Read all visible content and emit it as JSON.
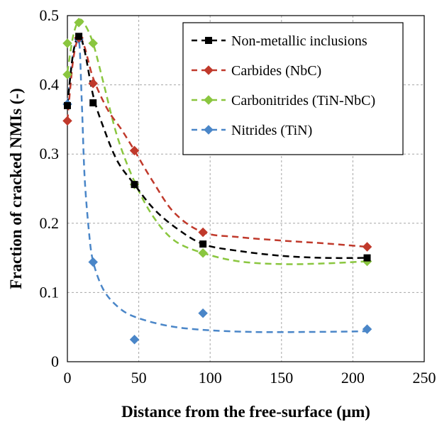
{
  "chart_data": {
    "type": "scatter",
    "xlabel": "Distance from the free-surface (µm)",
    "ylabel": "Fraction of cracked NMIs (-)",
    "xlim": [
      0,
      250
    ],
    "ylim": [
      0,
      0.5
    ],
    "xticks": [
      0,
      50,
      100,
      150,
      200,
      250
    ],
    "yticks": [
      0,
      0.1,
      0.2,
      0.3,
      0.4,
      0.5
    ],
    "x_tick_labels": [
      "0",
      "50",
      "100",
      "150",
      "200",
      "250"
    ],
    "y_tick_labels": [
      "0",
      "0.1",
      "0.2",
      "0.3",
      "0.4",
      "0.5"
    ],
    "grid": "dashed",
    "legend_position": "top-right",
    "series": [
      {
        "name": "Non-metallic inclusions",
        "color": "#000000",
        "marker": "square",
        "points": [
          [
            0,
            0.37
          ],
          [
            8,
            0.47
          ],
          [
            18,
            0.374
          ],
          [
            47,
            0.256
          ],
          [
            95,
            0.17
          ],
          [
            210,
            0.15
          ]
        ],
        "trend": [
          [
            0,
            0.37
          ],
          [
            4,
            0.445
          ],
          [
            8,
            0.47
          ],
          [
            12,
            0.45
          ],
          [
            18,
            0.385
          ],
          [
            25,
            0.34
          ],
          [
            35,
            0.29
          ],
          [
            47,
            0.256
          ],
          [
            60,
            0.222
          ],
          [
            75,
            0.195
          ],
          [
            95,
            0.17
          ],
          [
            120,
            0.16
          ],
          [
            150,
            0.153
          ],
          [
            180,
            0.15
          ],
          [
            210,
            0.15
          ]
        ]
      },
      {
        "name": "Carbides (NbC)",
        "color": "#c0392b",
        "marker": "diamond",
        "points": [
          [
            0,
            0.348
          ],
          [
            8,
            0.468
          ],
          [
            18,
            0.402
          ],
          [
            47,
            0.305
          ],
          [
            95,
            0.187
          ],
          [
            210,
            0.166
          ]
        ],
        "trend": [
          [
            0,
            0.348
          ],
          [
            4,
            0.435
          ],
          [
            8,
            0.468
          ],
          [
            12,
            0.455
          ],
          [
            18,
            0.41
          ],
          [
            28,
            0.365
          ],
          [
            38,
            0.335
          ],
          [
            47,
            0.305
          ],
          [
            60,
            0.26
          ],
          [
            75,
            0.215
          ],
          [
            95,
            0.187
          ],
          [
            120,
            0.18
          ],
          [
            150,
            0.175
          ],
          [
            180,
            0.171
          ],
          [
            210,
            0.166
          ]
        ]
      },
      {
        "name": "Carbonitrides (TiN-NbC)",
        "color": "#8ac63f",
        "marker": "diamond",
        "points": [
          [
            0,
            0.46
          ],
          [
            0,
            0.415
          ],
          [
            8,
            0.49
          ],
          [
            18,
            0.46
          ],
          [
            47,
            0.256
          ],
          [
            95,
            0.157
          ],
          [
            210,
            0.145
          ]
        ],
        "trend": [
          [
            0,
            0.418
          ],
          [
            4,
            0.47
          ],
          [
            8,
            0.493
          ],
          [
            12,
            0.488
          ],
          [
            18,
            0.46
          ],
          [
            25,
            0.405
          ],
          [
            35,
            0.325
          ],
          [
            47,
            0.26
          ],
          [
            60,
            0.21
          ],
          [
            75,
            0.175
          ],
          [
            95,
            0.157
          ],
          [
            120,
            0.145
          ],
          [
            150,
            0.141
          ],
          [
            180,
            0.142
          ],
          [
            210,
            0.145
          ]
        ]
      },
      {
        "name": "Nitrides (TiN)",
        "color": "#4a86c8",
        "marker": "diamond",
        "points": [
          [
            0,
            0.372
          ],
          [
            8,
            0.466
          ],
          [
            18,
            0.144
          ],
          [
            47,
            0.032
          ],
          [
            95,
            0.07
          ],
          [
            210,
            0.047
          ]
        ],
        "trend": [
          [
            0,
            0.372
          ],
          [
            4,
            0.445
          ],
          [
            8,
            0.466
          ],
          [
            10,
            0.38
          ],
          [
            12,
            0.27
          ],
          [
            15,
            0.19
          ],
          [
            18,
            0.145
          ],
          [
            25,
            0.105
          ],
          [
            35,
            0.08
          ],
          [
            47,
            0.065
          ],
          [
            70,
            0.052
          ],
          [
            95,
            0.046
          ],
          [
            130,
            0.043
          ],
          [
            170,
            0.043
          ],
          [
            210,
            0.044
          ]
        ]
      }
    ]
  }
}
